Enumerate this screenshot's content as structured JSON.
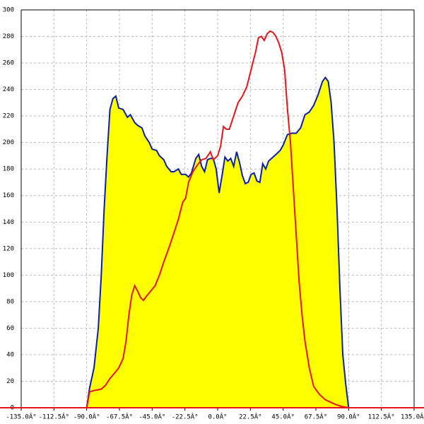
{
  "chart_data": {
    "type": "area",
    "xlim": [
      -135,
      135
    ],
    "ylim": [
      0,
      300
    ],
    "xticks": [
      {
        "value": -135,
        "label": "-135.0Â°"
      },
      {
        "value": -112.5,
        "label": "-112.5Â°"
      },
      {
        "value": -90,
        "label": "-90.0Â°"
      },
      {
        "value": -67.5,
        "label": "-67.5Â°"
      },
      {
        "value": -45,
        "label": "-45.0Â°"
      },
      {
        "value": -22.5,
        "label": "-22.5Â°"
      },
      {
        "value": 0,
        "label": "0.0Â°"
      },
      {
        "value": 22.5,
        "label": "22.5Â°"
      },
      {
        "value": 45,
        "label": "45.0Â°"
      },
      {
        "value": 67.5,
        "label": "67.5Â°"
      },
      {
        "value": 90,
        "label": "90.0Â°"
      },
      {
        "value": 112.5,
        "label": "112.5Â°"
      },
      {
        "value": 135,
        "label": "135.0Â°"
      }
    ],
    "yticks": [
      0,
      20,
      40,
      60,
      80,
      100,
      120,
      140,
      160,
      180,
      200,
      220,
      240,
      260,
      280,
      300
    ],
    "grid": true,
    "series": [
      {
        "color": "#0a1fa8",
        "fill": "#ffff00",
        "x": [
          -90,
          -88,
          -85,
          -82,
          -80,
          -78,
          -76,
          -74,
          -72,
          -70,
          -68,
          -65,
          -62,
          -60,
          -57,
          -55,
          -52,
          -50,
          -47,
          -45,
          -42,
          -40,
          -37,
          -35,
          -32,
          -30,
          -27,
          -25,
          -22,
          -20,
          -18,
          -15,
          -13,
          -11,
          -9,
          -7,
          -5,
          -3,
          -1,
          1,
          3,
          5,
          7,
          9,
          11,
          13,
          15,
          17,
          19,
          21,
          23,
          25,
          27,
          29,
          31,
          33,
          35,
          37,
          40,
          43,
          45,
          48,
          51,
          54,
          57,
          60,
          63,
          66,
          69,
          72,
          74,
          76,
          78,
          80,
          82,
          84,
          86,
          88,
          90
        ],
        "values": [
          0,
          15,
          30,
          60,
          100,
          150,
          190,
          225,
          233,
          235,
          226,
          225,
          219,
          221,
          215,
          213,
          211,
          205,
          200,
          195,
          194,
          190,
          187,
          182,
          178,
          178,
          180,
          176,
          176,
          174,
          177,
          188,
          191,
          182,
          178,
          187,
          188,
          188,
          180,
          162,
          175,
          189,
          186,
          188,
          182,
          193,
          185,
          175,
          169,
          170,
          176,
          177,
          171,
          170,
          184,
          180,
          186,
          188,
          191,
          194,
          198,
          206,
          207,
          207,
          211,
          221,
          223,
          228,
          236,
          246,
          249,
          246,
          230,
          200,
          150,
          90,
          40,
          18,
          0
        ]
      },
      {
        "color": "#e8141c",
        "x": [
          -90,
          -88,
          -85,
          -80,
          -77,
          -74,
          -71,
          -68,
          -65,
          -63,
          -61,
          -59,
          -57,
          -55,
          -53,
          -51,
          -49,
          -46,
          -43,
          -40,
          -37,
          -33,
          -30,
          -27,
          -24,
          -22,
          -20,
          -17,
          -14,
          -11,
          -8,
          -5,
          -3,
          0,
          2,
          4,
          6,
          8,
          11,
          14,
          17,
          20,
          23,
          26,
          28,
          30,
          32,
          34,
          36,
          38,
          40,
          42,
          44,
          46,
          48,
          50,
          52,
          54,
          56,
          58,
          60,
          63,
          66,
          70,
          74,
          80,
          85,
          90
        ],
        "values": [
          0,
          12,
          13,
          14,
          17,
          22,
          26,
          30,
          37,
          50,
          70,
          85,
          92,
          88,
          83,
          81,
          84,
          88,
          92,
          100,
          110,
          122,
          132,
          142,
          155,
          158,
          170,
          178,
          183,
          187,
          188,
          193,
          187,
          190,
          197,
          212,
          210,
          210,
          220,
          230,
          235,
          242,
          255,
          268,
          279,
          280,
          277,
          282,
          284,
          283,
          280,
          275,
          268,
          255,
          225,
          200,
          165,
          130,
          95,
          70,
          50,
          30,
          16,
          10,
          6,
          3,
          1,
          0
        ]
      }
    ]
  }
}
